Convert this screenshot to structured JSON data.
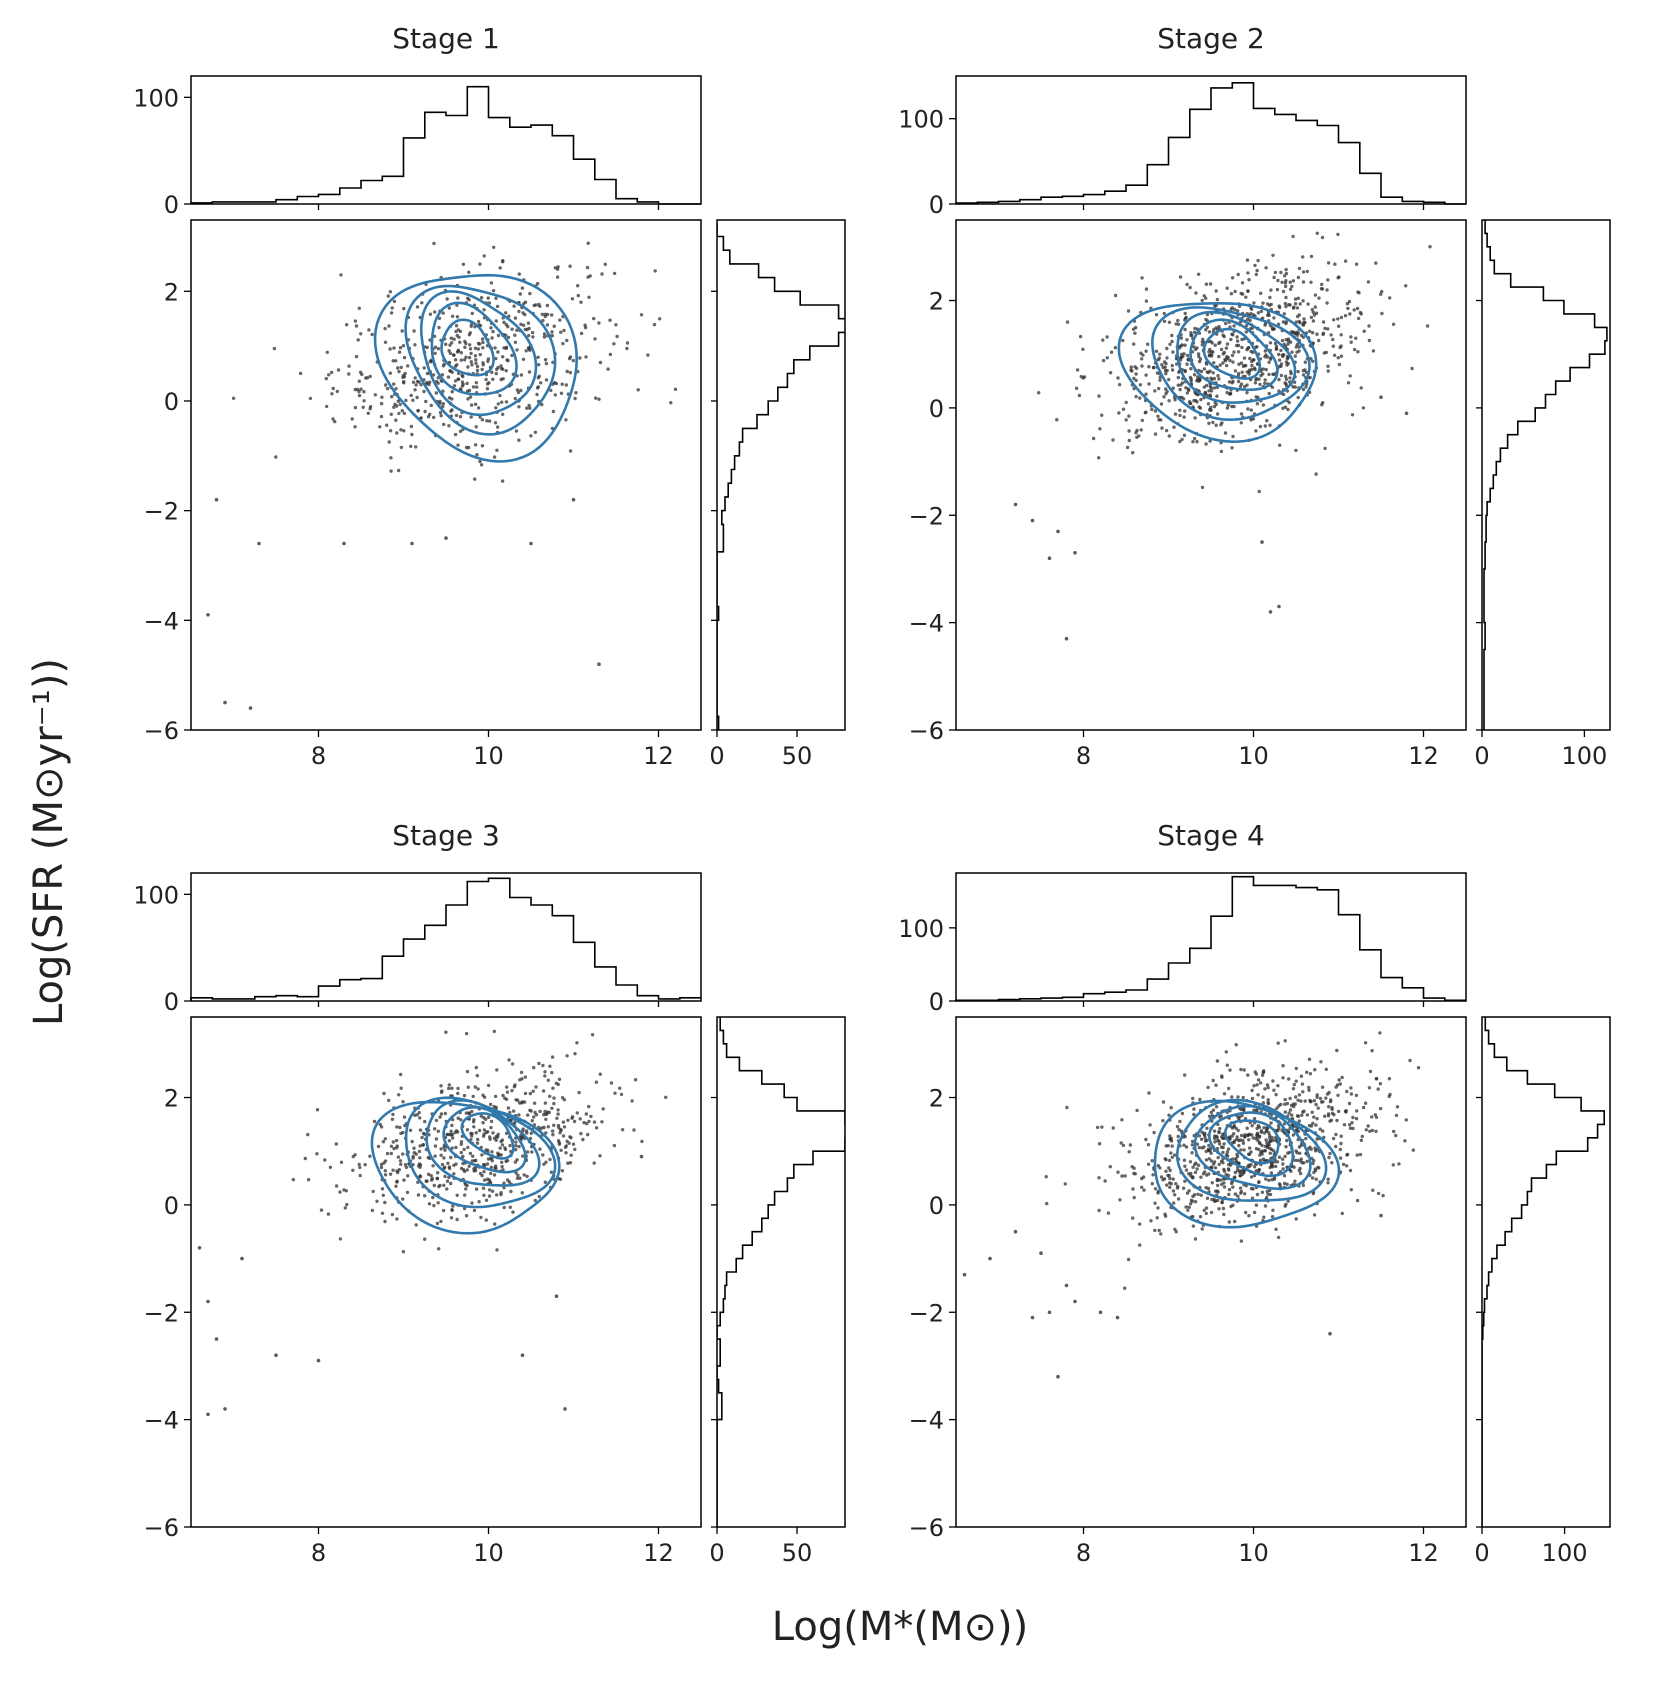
{
  "figure": {
    "ylabel": "Log(SFR (M⊙yr⁻¹))",
    "xlabel": "Log(M*(M⊙))"
  },
  "colors": {
    "contour": "#3279ad",
    "points": "#333333",
    "axes": "#000000",
    "histogram": "#000000"
  },
  "chart_data": [
    {
      "type": "scatter",
      "title": "Stage 1",
      "xlim": [
        6.5,
        12.5
      ],
      "ylim": [
        -6,
        3.3
      ],
      "xticks": [
        8,
        10,
        12
      ],
      "yticks": [
        -6,
        -4,
        -2,
        0,
        2
      ],
      "grid": false,
      "center": [
        9.8,
        0.75
      ],
      "spread": [
        0.8,
        0.9
      ],
      "n_points": 600,
      "outliers": [
        [
          6.7,
          -3.9
        ],
        [
          6.9,
          -5.5
        ],
        [
          7.2,
          -5.6
        ],
        [
          11.3,
          -4.8
        ],
        [
          7.3,
          -2.6
        ],
        [
          6.8,
          -1.8
        ],
        [
          8.3,
          -2.6
        ],
        [
          9.5,
          -2.5
        ],
        [
          9.1,
          -2.6
        ],
        [
          10.5,
          -2.6
        ],
        [
          11.0,
          -1.8
        ]
      ],
      "contours": [
        {
          "cx": 9.9,
          "cy": 0.7,
          "rx": 1.85,
          "ry": 2.35,
          "rot": 18
        },
        {
          "cx": 9.9,
          "cy": 0.8,
          "rx": 1.35,
          "ry": 1.85,
          "rot": 18
        },
        {
          "cx": 9.85,
          "cy": 0.85,
          "rx": 1.05,
          "ry": 1.5,
          "rot": 18
        },
        {
          "cx": 9.8,
          "cy": 0.9,
          "rx": 0.8,
          "ry": 1.1,
          "rot": 18
        },
        {
          "cx": 9.75,
          "cy": 0.95,
          "rx": 0.5,
          "ry": 0.65,
          "rot": 18
        }
      ],
      "top_hist": {
        "ylim": [
          0,
          120
        ],
        "yticks": [
          0,
          100
        ],
        "bins": [
          6.5,
          6.75,
          7.0,
          7.25,
          7.5,
          7.75,
          8.0,
          8.25,
          8.5,
          8.75,
          9.0,
          9.25,
          9.5,
          9.75,
          10.0,
          10.25,
          10.5,
          10.75,
          11.0,
          11.25,
          11.5,
          11.75,
          12.0,
          12.25,
          12.5
        ],
        "counts": [
          1,
          2,
          2,
          2,
          4,
          7,
          9,
          15,
          22,
          26,
          62,
          86,
          83,
          110,
          81,
          72,
          74,
          64,
          42,
          23,
          5,
          2,
          0,
          0
        ]
      },
      "right_hist": {
        "xlim": [
          0,
          80
        ],
        "xticks": [
          0,
          50
        ],
        "bins": [
          -6.0,
          -5.75,
          -5.5,
          -5.25,
          -5.0,
          -4.75,
          -4.5,
          -4.25,
          -4.0,
          -3.75,
          -3.5,
          -3.25,
          -3.0,
          -2.75,
          -2.5,
          -2.25,
          -2.0,
          -1.75,
          -1.5,
          -1.25,
          -1.0,
          -0.75,
          -0.5,
          -0.25,
          0.0,
          0.25,
          0.5,
          0.75,
          1.0,
          1.25,
          1.5,
          1.75,
          2.0,
          2.25,
          2.5,
          2.75,
          3.0,
          3.25
        ],
        "counts": [
          1,
          0,
          0,
          0,
          0,
          0,
          0,
          0,
          1,
          0,
          0,
          0,
          0,
          4,
          4,
          3,
          5,
          7,
          9,
          11,
          14,
          16,
          25,
          32,
          38,
          44,
          48,
          58,
          76,
          82,
          76,
          52,
          36,
          26,
          8,
          4,
          0
        ]
      }
    },
    {
      "type": "scatter",
      "title": "Stage 2",
      "xlim": [
        6.5,
        12.5
      ],
      "ylim": [
        -6,
        3.5
      ],
      "xticks": [
        8,
        10,
        12
      ],
      "yticks": [
        -6,
        -4,
        -2,
        0,
        2
      ],
      "grid": false,
      "center": [
        9.8,
        1.0
      ],
      "spread": [
        0.75,
        0.85
      ],
      "n_points": 900,
      "outliers": [
        [
          7.8,
          -4.3
        ],
        [
          10.2,
          -3.8
        ],
        [
          10.3,
          -3.7
        ],
        [
          7.2,
          -1.8
        ],
        [
          7.6,
          -2.8
        ],
        [
          7.9,
          -2.7
        ],
        [
          7.4,
          -2.1
        ],
        [
          7.7,
          -2.3
        ],
        [
          10.1,
          -2.5
        ],
        [
          11.5,
          0.2
        ],
        [
          11.8,
          -0.1
        ]
      ],
      "contours": [
        {
          "cx": 9.6,
          "cy": 0.75,
          "rx": 2.0,
          "ry": 2.05,
          "rot": 38
        },
        {
          "cx": 9.7,
          "cy": 0.85,
          "rx": 1.55,
          "ry": 1.6,
          "rot": 35
        },
        {
          "cx": 9.75,
          "cy": 0.9,
          "rx": 1.15,
          "ry": 1.25,
          "rot": 32
        },
        {
          "cx": 9.75,
          "cy": 0.95,
          "rx": 0.85,
          "ry": 0.95,
          "rot": 32
        },
        {
          "cx": 9.75,
          "cy": 1.0,
          "rx": 0.55,
          "ry": 0.65,
          "rot": 32
        }
      ],
      "top_hist": {
        "ylim": [
          0,
          150
        ],
        "yticks": [
          0,
          100
        ],
        "bins": [
          6.5,
          6.75,
          7.0,
          7.25,
          7.5,
          7.75,
          8.0,
          8.25,
          8.5,
          8.75,
          9.0,
          9.25,
          9.5,
          9.75,
          10.0,
          10.25,
          10.5,
          10.75,
          11.0,
          11.25,
          11.5,
          11.75,
          12.0,
          12.25,
          12.5
        ],
        "counts": [
          1,
          2,
          3,
          5,
          8,
          9,
          11,
          15,
          22,
          46,
          78,
          111,
          136,
          142,
          112,
          105,
          98,
          92,
          72,
          36,
          8,
          3,
          2,
          0
        ]
      },
      "right_hist": {
        "xlim": [
          0,
          125
        ],
        "xticks": [
          0,
          100
        ],
        "bins": [
          -6.0,
          -5.75,
          -5.5,
          -5.25,
          -5.0,
          -4.75,
          -4.5,
          -4.25,
          -4.0,
          -3.75,
          -3.5,
          -3.25,
          -3.0,
          -2.75,
          -2.5,
          -2.25,
          -2.0,
          -1.75,
          -1.5,
          -1.25,
          -1.0,
          -0.75,
          -0.5,
          -0.25,
          0.0,
          0.25,
          0.5,
          0.75,
          1.0,
          1.25,
          1.5,
          1.75,
          2.0,
          2.25,
          2.5,
          2.75,
          3.0,
          3.25,
          3.5
        ],
        "counts": [
          2,
          2,
          2,
          2,
          2,
          2,
          3,
          3,
          2,
          2,
          2,
          2,
          3,
          3,
          4,
          4,
          5,
          8,
          11,
          14,
          18,
          25,
          35,
          52,
          62,
          72,
          86,
          105,
          120,
          122,
          110,
          80,
          60,
          28,
          12,
          8,
          5,
          3
        ]
      }
    },
    {
      "type": "scatter",
      "title": "Stage 3",
      "xlim": [
        6.5,
        12.5
      ],
      "ylim": [
        -6,
        3.5
      ],
      "xticks": [
        8,
        10,
        12
      ],
      "yticks": [
        -6,
        -4,
        -2,
        0,
        2
      ],
      "grid": false,
      "center": [
        9.9,
        1.15
      ],
      "spread": [
        0.75,
        0.75
      ],
      "n_points": 650,
      "outliers": [
        [
          6.6,
          -0.8
        ],
        [
          6.7,
          -3.9
        ],
        [
          6.9,
          -3.8
        ],
        [
          6.8,
          -2.5
        ],
        [
          7.5,
          -2.8
        ],
        [
          8.0,
          -2.9
        ],
        [
          10.4,
          -2.8
        ],
        [
          10.9,
          -3.8
        ],
        [
          10.8,
          -1.7
        ],
        [
          7.1,
          -1.0
        ],
        [
          11.8,
          0.9
        ],
        [
          6.7,
          -1.8
        ]
      ],
      "contours": [
        {
          "cx": 9.7,
          "cy": 0.75,
          "rx": 1.95,
          "ry": 2.0,
          "rot": 42
        },
        {
          "cx": 9.85,
          "cy": 0.95,
          "rx": 1.5,
          "ry": 1.65,
          "rot": 40
        },
        {
          "cx": 9.9,
          "cy": 1.1,
          "rx": 1.1,
          "ry": 1.3,
          "rot": 40
        },
        {
          "cx": 9.95,
          "cy": 1.2,
          "rx": 0.8,
          "ry": 0.95,
          "rot": 40
        },
        {
          "cx": 10.0,
          "cy": 1.3,
          "rx": 0.5,
          "ry": 0.65,
          "rot": 40
        }
      ],
      "top_hist": {
        "ylim": [
          0,
          120
        ],
        "yticks": [
          0,
          100
        ],
        "bins": [
          6.5,
          6.75,
          7.0,
          7.25,
          7.5,
          7.75,
          8.0,
          8.25,
          8.5,
          8.75,
          9.0,
          9.25,
          9.5,
          9.75,
          10.0,
          10.25,
          10.5,
          10.75,
          11.0,
          11.25,
          11.5,
          11.75,
          12.0,
          12.25,
          12.5
        ],
        "counts": [
          3,
          2,
          2,
          4,
          5,
          4,
          14,
          20,
          21,
          42,
          58,
          71,
          90,
          112,
          115,
          97,
          90,
          80,
          55,
          32,
          15,
          5,
          2,
          3
        ]
      },
      "right_hist": {
        "xlim": [
          0,
          80
        ],
        "xticks": [
          0,
          50
        ],
        "bins": [
          -6.0,
          -5.75,
          -5.5,
          -5.25,
          -5.0,
          -4.75,
          -4.5,
          -4.25,
          -4.0,
          -3.75,
          -3.5,
          -3.25,
          -3.0,
          -2.75,
          -2.5,
          -2.25,
          -2.0,
          -1.75,
          -1.5,
          -1.25,
          -1.0,
          -0.75,
          -0.5,
          -0.25,
          0.0,
          0.25,
          0.5,
          0.75,
          1.0,
          1.25,
          1.5,
          1.75,
          2.0,
          2.25,
          2.5,
          2.75,
          3.0,
          3.25,
          3.5
        ],
        "counts": [
          0,
          0,
          0,
          0,
          0,
          0,
          0,
          0,
          3,
          3,
          1,
          0,
          2,
          2,
          0,
          2,
          4,
          5,
          6,
          12,
          16,
          22,
          28,
          32,
          36,
          44,
          48,
          60,
          80,
          82,
          80,
          50,
          42,
          28,
          14,
          6,
          4,
          2
        ]
      }
    },
    {
      "type": "scatter",
      "title": "Stage 4",
      "xlim": [
        6.5,
        12.5
      ],
      "ylim": [
        -6,
        3.5
      ],
      "xticks": [
        8,
        10,
        12
      ],
      "yticks": [
        -6,
        -4,
        -2,
        0,
        2
      ],
      "grid": false,
      "center": [
        9.95,
        1.1
      ],
      "spread": [
        0.75,
        0.8
      ],
      "n_points": 950,
      "outliers": [
        [
          6.6,
          -1.3
        ],
        [
          6.9,
          -1.0
        ],
        [
          7.2,
          -0.5
        ],
        [
          7.5,
          -0.9
        ],
        [
          7.6,
          -2.0
        ],
        [
          7.7,
          -3.2
        ],
        [
          7.4,
          -2.1
        ],
        [
          7.9,
          -1.8
        ],
        [
          8.2,
          -2.0
        ],
        [
          8.4,
          -2.1
        ],
        [
          10.9,
          -2.4
        ],
        [
          11.5,
          -0.2
        ],
        [
          7.8,
          -1.5
        ]
      ],
      "contours": [
        {
          "cx": 9.85,
          "cy": 0.75,
          "rx": 1.95,
          "ry": 1.85,
          "rot": 40
        },
        {
          "cx": 9.95,
          "cy": 0.95,
          "rx": 1.5,
          "ry": 1.5,
          "rot": 38
        },
        {
          "cx": 10.0,
          "cy": 1.05,
          "rx": 1.15,
          "ry": 1.2,
          "rot": 38
        },
        {
          "cx": 10.0,
          "cy": 1.15,
          "rx": 0.85,
          "ry": 0.9,
          "rot": 38
        },
        {
          "cx": 10.0,
          "cy": 1.2,
          "rx": 0.55,
          "ry": 0.6,
          "rot": 38
        }
      ],
      "top_hist": {
        "ylim": [
          0,
          175
        ],
        "yticks": [
          0,
          100
        ],
        "bins": [
          6.5,
          6.75,
          7.0,
          7.25,
          7.5,
          7.75,
          8.0,
          8.25,
          8.5,
          8.75,
          9.0,
          9.25,
          9.5,
          9.75,
          10.0,
          10.25,
          10.5,
          10.75,
          11.0,
          11.25,
          11.5,
          11.75,
          12.0,
          12.25,
          12.5
        ],
        "counts": [
          1,
          1,
          2,
          3,
          4,
          5,
          10,
          12,
          15,
          30,
          52,
          72,
          116,
          170,
          158,
          158,
          155,
          152,
          118,
          70,
          32,
          18,
          4,
          1
        ]
      },
      "right_hist": {
        "xlim": [
          0,
          155
        ],
        "xticks": [
          0,
          100
        ],
        "bins": [
          -6.0,
          -5.75,
          -5.5,
          -5.25,
          -5.0,
          -4.75,
          -4.5,
          -4.25,
          -4.0,
          -3.75,
          -3.5,
          -3.25,
          -3.0,
          -2.75,
          -2.5,
          -2.25,
          -2.0,
          -1.75,
          -1.5,
          -1.25,
          -1.0,
          -0.75,
          -0.5,
          -0.25,
          0.0,
          0.25,
          0.5,
          0.75,
          1.0,
          1.25,
          1.5,
          1.75,
          2.0,
          2.25,
          2.5,
          2.75,
          3.0,
          3.25,
          3.5
        ],
        "counts": [
          0,
          0,
          0,
          0,
          0,
          0,
          0,
          0,
          0,
          0,
          0,
          0,
          0,
          0,
          1,
          2,
          3,
          6,
          8,
          12,
          18,
          28,
          36,
          48,
          55,
          60,
          78,
          90,
          128,
          140,
          148,
          120,
          88,
          55,
          30,
          15,
          8,
          4
        ]
      }
    }
  ]
}
